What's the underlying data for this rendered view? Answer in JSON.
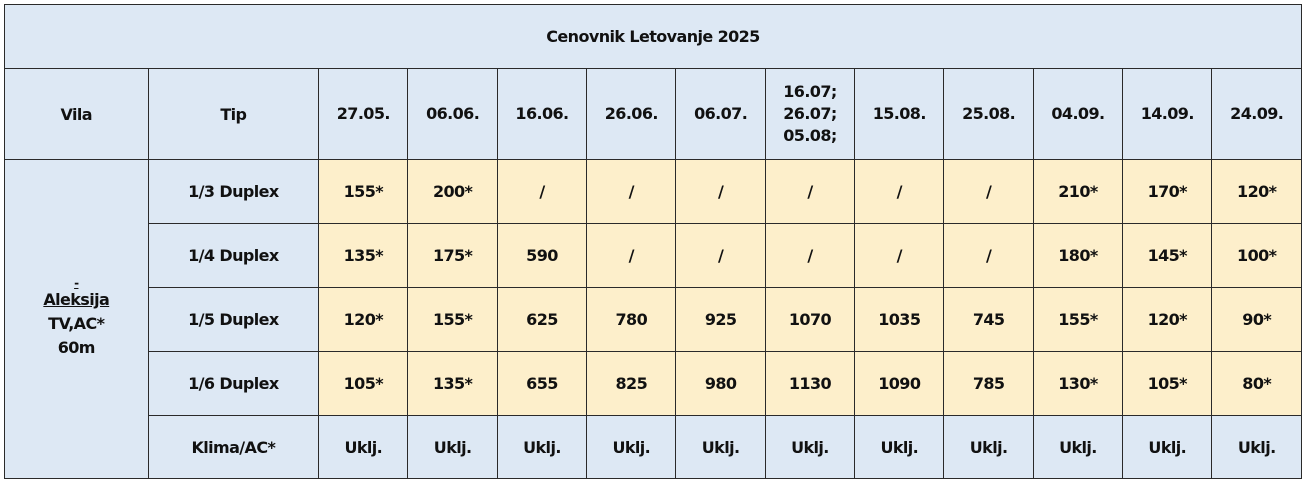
{
  "title": "Cenovnik Letovanje 2025",
  "headers": {
    "vila": "Vila",
    "tip": "Tip",
    "dates": [
      "27.05.",
      "06.06.",
      "16.06.",
      "26.06.",
      "06.07.",
      "16.07;\n26.07;\n05.08;",
      "15.08.",
      "25.08.",
      "04.09.",
      "14.09.",
      "24.09."
    ]
  },
  "vila": {
    "dash": "-",
    "name": "Aleksija",
    "amenities": "TV,AC*",
    "size": "60m"
  },
  "rows": [
    {
      "tip": "1/3 Duplex",
      "values": [
        "155*",
        "200*",
        "/",
        "/",
        "/",
        "/",
        "/",
        "/",
        "210*",
        "170*",
        "120*"
      ]
    },
    {
      "tip": "1/4 Duplex",
      "values": [
        "135*",
        "175*",
        "590",
        "/",
        "/",
        "/",
        "/",
        "/",
        "180*",
        "145*",
        "100*"
      ]
    },
    {
      "tip": "1/5 Duplex",
      "values": [
        "120*",
        "155*",
        "625",
        "780",
        "925",
        "1070",
        "1035",
        "745",
        "155*",
        "120*",
        "90*"
      ]
    },
    {
      "tip": "1/6 Duplex",
      "values": [
        "105*",
        "135*",
        "655",
        "825",
        "980",
        "1130",
        "1090",
        "785",
        "130*",
        "105*",
        "80*"
      ]
    }
  ],
  "klima": {
    "label": "Klima/AC*",
    "values": [
      "Uklj.",
      "Uklj.",
      "Uklj.",
      "Uklj.",
      "Uklj.",
      "Uklj.",
      "Uklj.",
      "Uklj.",
      "Uklj.",
      "Uklj.",
      "Uklj."
    ]
  },
  "colors": {
    "header_bg": "#dde8f4",
    "price_bg": "#fdefcb",
    "border": "#2a2a2a"
  }
}
